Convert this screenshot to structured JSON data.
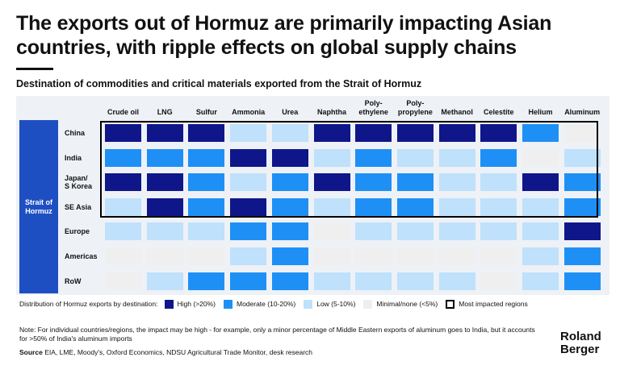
{
  "header": {
    "title": "The exports out of Hormuz are primarily impacting Asian countries, with ripple effects on global supply chains",
    "subtitle": "Destination of commodities and critical materials exported from the Strait of Hormuz"
  },
  "colors": {
    "high": "#0f168a",
    "moderate": "#1e90f5",
    "low": "#bfe1fb",
    "minimal": "#efefef",
    "panel": "#eef1f6",
    "strait": "#1e4fc2"
  },
  "chart_data": {
    "type": "heatmap",
    "title": "Destination of commodities and critical materials exported from the Strait of Hormuz",
    "group_label": "Strait of\nHormuz",
    "columns": [
      "Crude oil",
      "LNG",
      "Sulfur",
      "Ammonia",
      "Urea",
      "Naphtha",
      "Poly-\nethylene",
      "Poly-\npropylene",
      "Methanol",
      "Celestite",
      "Helium",
      "Aluminum"
    ],
    "rows": [
      "China",
      "India",
      "Japan/\nS Korea",
      "SE Asia",
      "Europe",
      "Americas",
      "RoW"
    ],
    "scale": {
      "high": "High (>20%)",
      "moderate": "Moderate (10-20%)",
      "low": "Low (5-10%)",
      "minimal": "Minimal/none (<5%)"
    },
    "values": [
      [
        "high",
        "high",
        "high",
        "low",
        "low",
        "high",
        "high",
        "high",
        "high",
        "high",
        "moderate",
        "minimal"
      ],
      [
        "moderate",
        "moderate",
        "moderate",
        "high",
        "high",
        "low",
        "moderate",
        "low",
        "low",
        "moderate",
        "minimal",
        "low"
      ],
      [
        "high",
        "high",
        "moderate",
        "low",
        "moderate",
        "high",
        "moderate",
        "moderate",
        "low",
        "low",
        "high",
        "moderate"
      ],
      [
        "low",
        "high",
        "moderate",
        "high",
        "moderate",
        "low",
        "moderate",
        "moderate",
        "low",
        "low",
        "low",
        "moderate"
      ],
      [
        "low",
        "low",
        "low",
        "moderate",
        "moderate",
        "minimal",
        "low",
        "low",
        "low",
        "low",
        "low",
        "high"
      ],
      [
        "minimal",
        "minimal",
        "minimal",
        "low",
        "moderate",
        "minimal",
        "minimal",
        "minimal",
        "minimal",
        "minimal",
        "low",
        "moderate"
      ],
      [
        "minimal",
        "low",
        "moderate",
        "moderate",
        "moderate",
        "low",
        "low",
        "low",
        "low",
        "minimal",
        "low",
        "moderate"
      ]
    ],
    "highlighted_rows": [
      "China",
      "India",
      "Japan/\nS Korea",
      "SE Asia"
    ]
  },
  "legend": {
    "intro": "Distribution of Hormuz exports by destination:",
    "items": [
      {
        "key": "high",
        "label": "High (>20%)"
      },
      {
        "key": "moderate",
        "label": "Moderate (10-20%)"
      },
      {
        "key": "low",
        "label": "Low (5-10%)"
      },
      {
        "key": "minimal",
        "label": "Minimal/none (<5%)"
      },
      {
        "key": "outline",
        "label": "Most impacted regions"
      }
    ]
  },
  "footer": {
    "note": "Note: For individual countries/regions, the impact may be high - for example, only a minor percentage of Middle Eastern exports of aluminum goes to India, but it accounts for >50% of India's aluminum imports",
    "source_label": "Source",
    "source_text": " EIA, LME, Moody's, Oxford Economics, NDSU Agricultural Trade Monitor, desk research",
    "logo_line1": "Roland",
    "logo_line2": "Berger"
  }
}
